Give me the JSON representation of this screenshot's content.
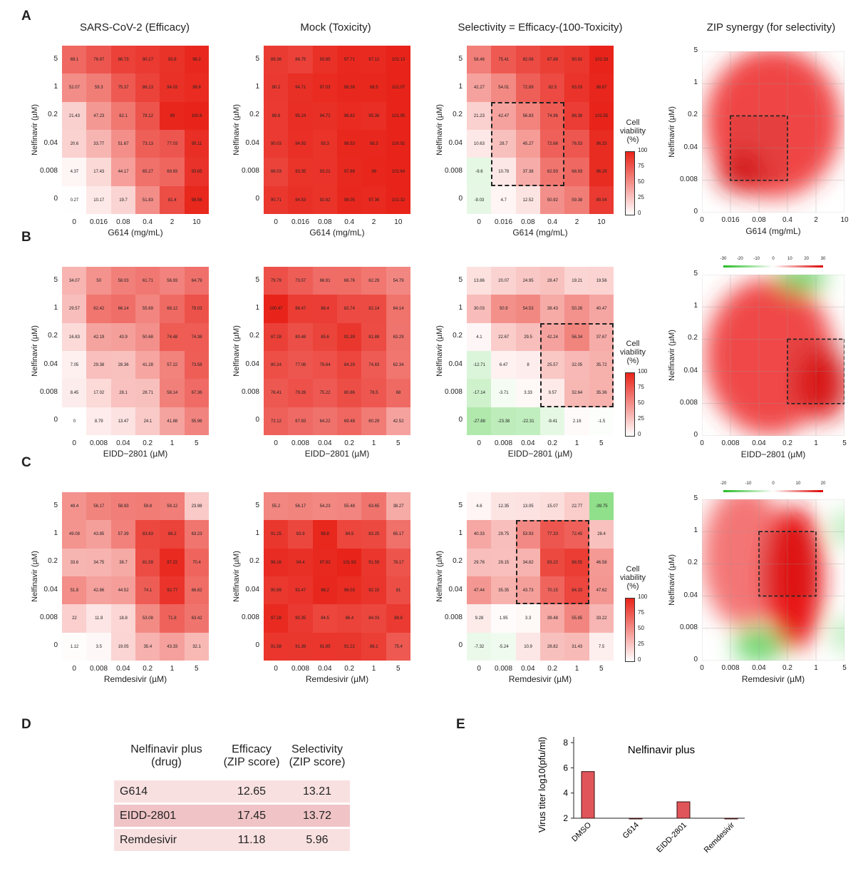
{
  "column_titles": [
    {
      "main": "SARS-CoV-2",
      "sub": "(Efficacy)"
    },
    {
      "main": "Mock",
      "sub": "(Toxicity)"
    },
    {
      "main": "Selectivity",
      "sub": "= Efficacy-(100-Toxicity)"
    },
    {
      "main": "ZIP synergy",
      "sub": "(for selectivity)"
    }
  ],
  "colorbar": {
    "title": "Cell viability (%)",
    "ticks": [
      "100",
      "75",
      "50",
      "25",
      "0"
    ]
  },
  "colors": {
    "high": "#e8241a",
    "low": "#ffffff",
    "negative": "#8fe08a",
    "bar": "#e05559"
  },
  "panels": [
    {
      "letter": "A",
      "y_label": "Nelfinavir (µM)",
      "x_label": "G614 (mg/mL)",
      "y_ticks": [
        "5",
        "1",
        "0.2",
        "0.04",
        "0.008",
        "0"
      ],
      "x_ticks": [
        "0",
        "0.016",
        "0.08",
        "0.4",
        "2",
        "10"
      ],
      "efficacy": [
        [
          69.1,
          76.97,
          86.73,
          90.17,
          93.8,
          98.2
        ],
        [
          52.07,
          59.3,
          75.37,
          86.13,
          94.03,
          96.8
        ],
        [
          21.43,
          47.23,
          62.1,
          78.12,
          99,
          100.6
        ],
        [
          20.6,
          33.77,
          51.67,
          73.13,
          77.03,
          95.11
        ],
        [
          4.37,
          17.43,
          44.17,
          65.27,
          69.93,
          93.65
        ],
        [
          0.27,
          10.17,
          19.7,
          51.83,
          81.4,
          98.56
        ]
      ],
      "mock": [
        [
          89.36,
          86.75,
          93.85,
          97.71,
          97.12,
          102.13
        ],
        [
          90.2,
          94.71,
          97.03,
          98.36,
          98.5,
          102.07
        ],
        [
          89.8,
          95.24,
          94.72,
          96.82,
          95.36,
          101.95
        ],
        [
          90.03,
          94.93,
          93.3,
          98.53,
          98.3,
          100.92
        ],
        [
          86.03,
          93.35,
          93.21,
          97.88,
          99,
          102.64
        ],
        [
          90.71,
          94.53,
          92.82,
          98.05,
          97.36,
          102.32
        ]
      ],
      "selectivity": [
        [
          58.46,
          75.41,
          82.08,
          87.88,
          90.92,
          102.33
        ],
        [
          42.27,
          54.01,
          72.89,
          82.5,
          93.03,
          98.87
        ],
        [
          21.23,
          42.47,
          56.83,
          74.96,
          88.38,
          102.55
        ],
        [
          10.63,
          28.7,
          45.27,
          72.66,
          76.53,
          96.33
        ],
        [
          -9.6,
          10.78,
          37.38,
          62.93,
          68.93,
          96.29
        ],
        [
          -9.03,
          4.7,
          12.52,
          50.92,
          59.38,
          90.04
        ]
      ],
      "highlight": {
        "x": [
          "0.016",
          "0.4"
        ],
        "y": [
          "0.008",
          "0.2"
        ]
      },
      "zip_legend": []
    },
    {
      "letter": "B",
      "y_label": "Nelfinavir (µM)",
      "x_label": "EIDD−2801 (µM)",
      "y_ticks": [
        "5",
        "1",
        "0.2",
        "0.04",
        "0.008",
        "0"
      ],
      "x_ticks": [
        "0",
        "0.008",
        "0.04",
        "0.2",
        "1",
        "5"
      ],
      "efficacy": [
        [
          34.07,
          50,
          58.03,
          61.71,
          56.93,
          64.79
        ],
        [
          29.57,
          62.42,
          66.14,
          55.69,
          68.12,
          79.03
        ],
        [
          16.83,
          42.19,
          43.9,
          50.68,
          74.48,
          74.38
        ],
        [
          7.05,
          29.38,
          28.36,
          41.28,
          57.22,
          73.58
        ],
        [
          8.45,
          17.02,
          28.1,
          28.71,
          58.14,
          67.36
        ],
        [
          0,
          8.79,
          13.47,
          24.1,
          41.88,
          55.96
        ]
      ],
      "mock": [
        [
          79.79,
          73.57,
          66.91,
          66.76,
          62.29,
          54.79
        ],
        [
          100.47,
          88.47,
          88.4,
          82.74,
          82.14,
          64.14
        ],
        [
          87.28,
          80.48,
          85.6,
          91.39,
          81.88,
          63.29
        ],
        [
          80.24,
          77.06,
          79.64,
          84.29,
          74.83,
          62.34
        ],
        [
          76.41,
          79.26,
          75.22,
          80.86,
          76.5,
          68
        ],
        [
          72.12,
          67.83,
          64.22,
          69.48,
          60.29,
          42.52
        ]
      ],
      "selectivity": [
        [
          13.86,
          20.07,
          24.95,
          28.47,
          19.21,
          19.56
        ],
        [
          30.03,
          50.9,
          54.53,
          38.43,
          50.26,
          40.47
        ],
        [
          4.1,
          22.67,
          29.5,
          42.24,
          56.34,
          37.67
        ],
        [
          -12.71,
          6.47,
          8,
          25.57,
          32.05,
          35.72
        ],
        [
          -17.14,
          -3.71,
          3.33,
          9.57,
          32.64,
          35.36
        ],
        [
          -27.88,
          -23.38,
          -22.31,
          -9.41,
          2.16,
          -1.5
        ]
      ],
      "highlight": {
        "x": [
          "0.2",
          "5"
        ],
        "y": [
          "0.008",
          "0.2"
        ]
      },
      "zip_legend": [
        "-30",
        "-20",
        "-10",
        "0",
        "10",
        "20",
        "30"
      ]
    },
    {
      "letter": "C",
      "y_label": "Nelfinavir (µM)",
      "x_label": "Remdesivir (µM)",
      "y_ticks": [
        "5",
        "1",
        "0.2",
        "0.04",
        "0.008",
        "0"
      ],
      "x_ticks": [
        "0",
        "0.008",
        "0.04",
        "0.2",
        "1",
        "5"
      ],
      "efficacy": [
        [
          49.4,
          56.17,
          58.93,
          59.8,
          59.12,
          23.98
        ],
        [
          49.08,
          43.85,
          57.39,
          83.63,
          86.2,
          63.23
        ],
        [
          33.6,
          34.75,
          38.7,
          81.59,
          97.22,
          70.4
        ],
        [
          51.8,
          42.86,
          44.52,
          74.1,
          92.77,
          66.82
        ],
        [
          22,
          11.9,
          18.8,
          53.08,
          71.8,
          63.42
        ],
        [
          1.12,
          3.5,
          19.05,
          35.4,
          43.33,
          32.1
        ]
      ],
      "mock": [
        [
          55.2,
          56.17,
          54.23,
          55.48,
          63.65,
          38.27
        ],
        [
          91.25,
          83.9,
          98.8,
          84.5,
          83.25,
          65.17
        ],
        [
          96.16,
          94.4,
          97.92,
          101.93,
          91.59,
          78.17
        ],
        [
          90.89,
          92.47,
          98.2,
          96.03,
          92.15,
          81
        ],
        [
          97.28,
          90.35,
          84.5,
          86.4,
          84.03,
          89.8
        ],
        [
          91.58,
          91.39,
          91.85,
          91.22,
          88.1,
          75.4
        ]
      ],
      "selectivity": [
        [
          4.6,
          12.35,
          13.05,
          15.07,
          22.77,
          -39.75
        ],
        [
          40.33,
          29.75,
          53.93,
          77.33,
          72.45,
          28.4
        ],
        [
          29.76,
          29.15,
          34.82,
          83.22,
          88.55,
          46.58
        ],
        [
          47.44,
          35.35,
          43.73,
          70.15,
          84.33,
          47.62
        ],
        [
          9.28,
          1.95,
          3.3,
          39.48,
          55.85,
          33.22
        ],
        [
          -7.32,
          -5.24,
          10.9,
          28.82,
          31.43,
          7.5
        ]
      ],
      "highlight": {
        "x": [
          "0.04",
          "1"
        ],
        "y": [
          "0.04",
          "1"
        ]
      },
      "zip_legend": [
        "-20",
        "-10",
        "0",
        "10",
        "20"
      ]
    }
  ],
  "table": {
    "letter": "D",
    "headers": [
      "Nelfinavir plus\n(drug)",
      "Efficacy\n(ZIP score)",
      "Selectivity\n(ZIP score)"
    ],
    "rows": [
      [
        "G614",
        "12.65",
        "13.21"
      ],
      [
        "EIDD-2801",
        "17.45",
        "13.72"
      ],
      [
        "Remdesivir",
        "11.18",
        "5.96"
      ]
    ]
  },
  "chart_data": {
    "letter": "E",
    "type": "bar",
    "title": "Nelfinavir plus",
    "ylabel": "Virus titer log10(pfu/ml)",
    "categories": [
      "DMSO",
      "G614",
      "EIDD-2801",
      "Remdesivir"
    ],
    "values": [
      5.7,
      2.0,
      3.3,
      2.0
    ],
    "ylim": [
      2,
      8
    ],
    "yticks": [
      "2",
      "4",
      "6",
      "8"
    ]
  }
}
